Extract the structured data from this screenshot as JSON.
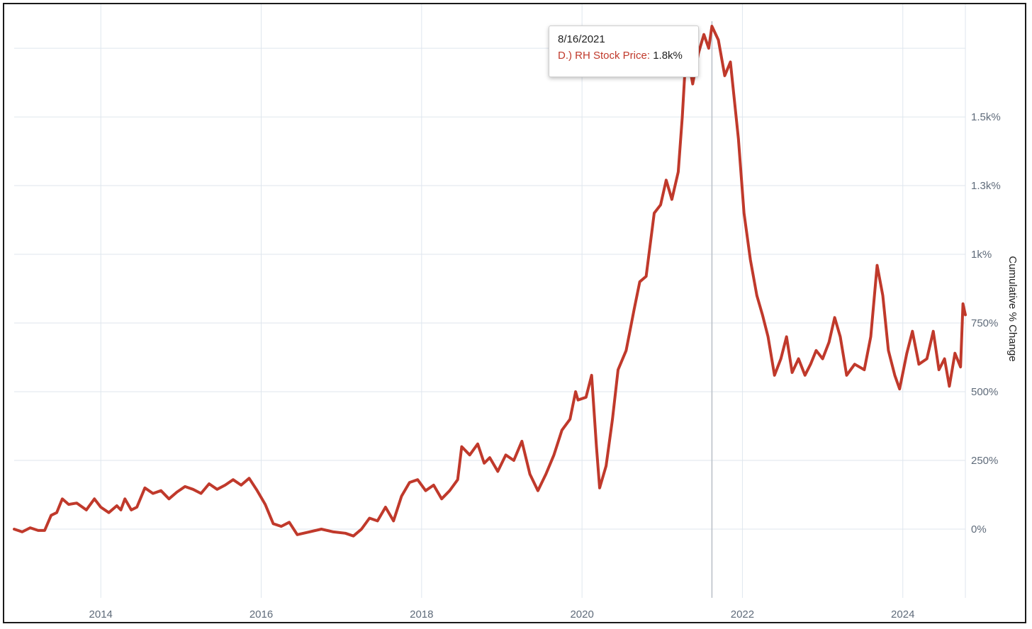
{
  "chart_data": {
    "type": "line",
    "title": "",
    "xlabel": "",
    "ylabel": "Cumulative % Change",
    "xlim": [
      2012.92,
      2024.78
    ],
    "ylim": [
      -250,
      1910
    ],
    "x_ticks": [
      2014,
      2016,
      2018,
      2020,
      2022,
      2024
    ],
    "x_tick_labels": [
      "2014",
      "2016",
      "2018",
      "2020",
      "2022",
      "2024"
    ],
    "y_ticks": [
      0,
      250,
      500,
      750,
      1000,
      1250,
      1500
    ],
    "y_tick_labels": [
      "0%",
      "250%",
      "500%",
      "750%",
      "1k%",
      "1.3k%",
      "1.5k%"
    ],
    "y_grid_extra": [
      1750
    ],
    "grid": true,
    "axis_side": "right",
    "line_color": "#c0392b",
    "series": [
      {
        "name": "D.) RH Stock Price",
        "color": "#c0392b",
        "points": [
          [
            2012.92,
            0
          ],
          [
            2013.02,
            -10
          ],
          [
            2013.12,
            5
          ],
          [
            2013.22,
            -5
          ],
          [
            2013.3,
            -5
          ],
          [
            2013.38,
            50
          ],
          [
            2013.45,
            60
          ],
          [
            2013.52,
            110
          ],
          [
            2013.6,
            90
          ],
          [
            2013.7,
            95
          ],
          [
            2013.82,
            70
          ],
          [
            2013.92,
            110
          ],
          [
            2014.0,
            80
          ],
          [
            2014.1,
            60
          ],
          [
            2014.2,
            85
          ],
          [
            2014.25,
            70
          ],
          [
            2014.3,
            110
          ],
          [
            2014.38,
            70
          ],
          [
            2014.45,
            80
          ],
          [
            2014.55,
            150
          ],
          [
            2014.65,
            130
          ],
          [
            2014.75,
            140
          ],
          [
            2014.85,
            110
          ],
          [
            2014.95,
            135
          ],
          [
            2015.05,
            155
          ],
          [
            2015.15,
            145
          ],
          [
            2015.25,
            130
          ],
          [
            2015.35,
            165
          ],
          [
            2015.45,
            145
          ],
          [
            2015.55,
            160
          ],
          [
            2015.65,
            180
          ],
          [
            2015.75,
            160
          ],
          [
            2015.85,
            185
          ],
          [
            2015.95,
            140
          ],
          [
            2016.05,
            90
          ],
          [
            2016.15,
            20
          ],
          [
            2016.25,
            10
          ],
          [
            2016.35,
            25
          ],
          [
            2016.45,
            -20
          ],
          [
            2016.6,
            -10
          ],
          [
            2016.75,
            0
          ],
          [
            2016.9,
            -10
          ],
          [
            2017.05,
            -15
          ],
          [
            2017.15,
            -25
          ],
          [
            2017.25,
            0
          ],
          [
            2017.35,
            40
          ],
          [
            2017.45,
            30
          ],
          [
            2017.55,
            80
          ],
          [
            2017.65,
            30
          ],
          [
            2017.75,
            120
          ],
          [
            2017.85,
            170
          ],
          [
            2017.95,
            180
          ],
          [
            2018.05,
            140
          ],
          [
            2018.15,
            160
          ],
          [
            2018.25,
            110
          ],
          [
            2018.35,
            140
          ],
          [
            2018.45,
            180
          ],
          [
            2018.5,
            300
          ],
          [
            2018.6,
            270
          ],
          [
            2018.7,
            310
          ],
          [
            2018.78,
            240
          ],
          [
            2018.85,
            260
          ],
          [
            2018.95,
            210
          ],
          [
            2019.05,
            270
          ],
          [
            2019.15,
            250
          ],
          [
            2019.25,
            320
          ],
          [
            2019.35,
            200
          ],
          [
            2019.45,
            140
          ],
          [
            2019.55,
            200
          ],
          [
            2019.65,
            270
          ],
          [
            2019.75,
            360
          ],
          [
            2019.85,
            400
          ],
          [
            2019.92,
            500
          ],
          [
            2019.95,
            470
          ],
          [
            2020.05,
            480
          ],
          [
            2020.12,
            560
          ],
          [
            2020.18,
            300
          ],
          [
            2020.22,
            150
          ],
          [
            2020.3,
            230
          ],
          [
            2020.38,
            400
          ],
          [
            2020.45,
            580
          ],
          [
            2020.55,
            650
          ],
          [
            2020.65,
            800
          ],
          [
            2020.72,
            900
          ],
          [
            2020.8,
            920
          ],
          [
            2020.9,
            1150
          ],
          [
            2020.98,
            1180
          ],
          [
            2021.05,
            1270
          ],
          [
            2021.12,
            1200
          ],
          [
            2021.2,
            1300
          ],
          [
            2021.25,
            1500
          ],
          [
            2021.3,
            1750
          ],
          [
            2021.38,
            1620
          ],
          [
            2021.45,
            1730
          ],
          [
            2021.52,
            1800
          ],
          [
            2021.58,
            1750
          ],
          [
            2021.62,
            1830
          ],
          [
            2021.7,
            1780
          ],
          [
            2021.78,
            1650
          ],
          [
            2021.85,
            1700
          ],
          [
            2021.95,
            1420
          ],
          [
            2022.02,
            1150
          ],
          [
            2022.1,
            980
          ],
          [
            2022.18,
            850
          ],
          [
            2022.25,
            780
          ],
          [
            2022.32,
            700
          ],
          [
            2022.4,
            560
          ],
          [
            2022.48,
            620
          ],
          [
            2022.55,
            700
          ],
          [
            2022.62,
            570
          ],
          [
            2022.7,
            620
          ],
          [
            2022.78,
            560
          ],
          [
            2022.85,
            600
          ],
          [
            2022.92,
            650
          ],
          [
            2023.0,
            620
          ],
          [
            2023.08,
            680
          ],
          [
            2023.15,
            770
          ],
          [
            2023.22,
            700
          ],
          [
            2023.3,
            560
          ],
          [
            2023.4,
            600
          ],
          [
            2023.52,
            580
          ],
          [
            2023.6,
            700
          ],
          [
            2023.68,
            960
          ],
          [
            2023.75,
            850
          ],
          [
            2023.82,
            650
          ],
          [
            2023.9,
            560
          ],
          [
            2023.96,
            510
          ],
          [
            2024.05,
            640
          ],
          [
            2024.12,
            720
          ],
          [
            2024.2,
            600
          ],
          [
            2024.3,
            620
          ],
          [
            2024.38,
            720
          ],
          [
            2024.45,
            580
          ],
          [
            2024.52,
            620
          ],
          [
            2024.58,
            520
          ],
          [
            2024.65,
            640
          ],
          [
            2024.72,
            590
          ],
          [
            2024.75,
            820
          ],
          [
            2024.78,
            780
          ]
        ]
      }
    ],
    "hover_marker_x": 2021.62,
    "tooltip": {
      "date": "8/16/2021",
      "series_label": "D.) RH Stock Price:",
      "value": "1.8k%"
    }
  }
}
